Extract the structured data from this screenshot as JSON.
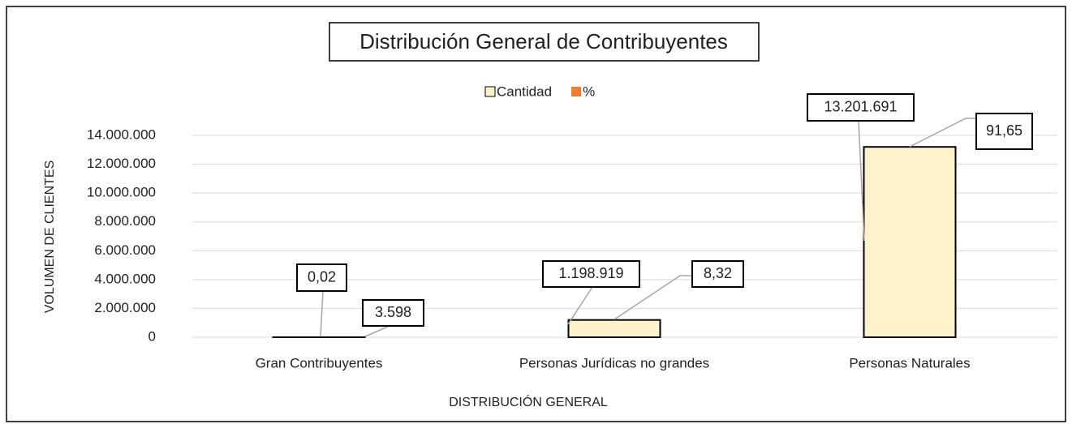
{
  "chart_data": {
    "type": "bar",
    "title": "Distribución General de Contribuyentes",
    "x_label": "DISTRIBUCIÓN GENERAL",
    "y_label": "VOLUMEN DE CLIENTES",
    "categories": [
      "Gran Contribuyentes",
      "Personas Jurídicas no grandes",
      "Personas Naturales"
    ],
    "series": [
      {
        "name": "Cantidad",
        "color": "#fff2cc",
        "values": [
          3598,
          1198919,
          13201691
        ],
        "value_labels": [
          "3.598",
          "1.198.919",
          "13.201.691"
        ]
      },
      {
        "name": "%",
        "color": "#ed7d31",
        "values": [
          0.02,
          8.32,
          91.65
        ],
        "value_labels": [
          "0,02",
          "8,32",
          "91,65"
        ]
      }
    ],
    "ylim": [
      0,
      14000000
    ],
    "yticks": [
      0,
      {
        "value": 2000000,
        "label": "2.000.000"
      },
      {
        "value": 4000000,
        "label": "4.000.000"
      },
      {
        "value": 6000000,
        "label": "6.000.000"
      },
      {
        "value": 8000000,
        "label": "8.000.000"
      },
      {
        "value": 10000000,
        "label": "10.000.000"
      },
      {
        "value": 12000000,
        "label": "12.000.000"
      },
      {
        "value": 14000000,
        "label": "14.000.000"
      }
    ],
    "grid": true,
    "legend": "top"
  }
}
